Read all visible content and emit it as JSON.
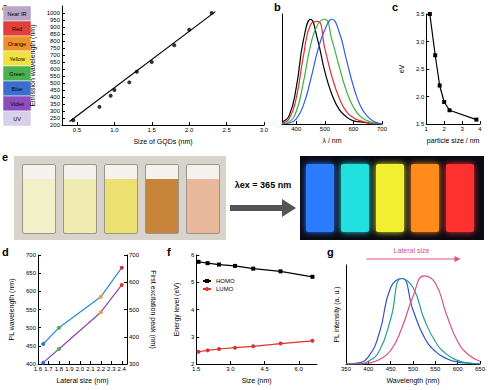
{
  "chart_data": [
    {
      "panel": "a",
      "type": "scatter",
      "x_label": "Size of GQDs (nm)",
      "y_label": "Emission wavelength (nm)",
      "xlim": [
        0.3,
        3.0
      ],
      "xticks": [
        0.5,
        {
          "value": 1,
          "label": "1.0"
        },
        1.5,
        {
          "value": 2,
          "label": "2.0"
        },
        2.5,
        {
          "value": 3,
          "label": "3.0"
        }
      ],
      "ylim": [
        200,
        1050
      ],
      "yticks": [
        200,
        250,
        300,
        350,
        400,
        450,
        500,
        550,
        600,
        650,
        700,
        750,
        800,
        850,
        900,
        950,
        1000
      ],
      "grid": false,
      "bands": [
        {
          "name": "Near IR",
          "color": "#b8a6c8"
        },
        {
          "name": "Red",
          "color": "#e0403a"
        },
        {
          "name": "Orange",
          "color": "#f0902a"
        },
        {
          "name": "Yellow",
          "color": "#f2e040"
        },
        {
          "name": "Green",
          "color": "#4cb050"
        },
        {
          "name": "Blue",
          "color": "#3a6fd0"
        },
        {
          "name": "Violet",
          "color": "#8a4ec0"
        },
        {
          "name": "UV",
          "color": "#d8d0e8"
        }
      ],
      "series": [
        {
          "type": "line",
          "color": "#000000",
          "marker": "none",
          "line_style": "solid",
          "x": [
            0.4,
            2.35
          ],
          "values": [
            225,
            1010
          ]
        },
        {
          "type": "scatter",
          "color": "#000000",
          "marker": "circle",
          "x": [
            0.45,
            0.8,
            0.95,
            1.0,
            1.2,
            1.3,
            1.5,
            1.8,
            2.0,
            2.3
          ],
          "values": [
            235,
            330,
            410,
            450,
            505,
            580,
            650,
            770,
            880,
            1000
          ]
        }
      ]
    },
    {
      "panel": "b",
      "type": "line",
      "x_label": "λ / nm",
      "x": [
        350,
        375,
        400,
        425,
        450,
        475,
        500,
        525,
        550,
        575,
        600,
        625,
        650,
        675,
        700
      ],
      "xlim": [
        350,
        700
      ],
      "xticks": [
        400,
        500,
        600,
        700
      ],
      "ylim": [
        0,
        1.05
      ],
      "yticks": [],
      "tick_labels": "x",
      "grid": false,
      "series": [
        {
          "color": "#000000",
          "marker": "none",
          "values": [
            0.02,
            0.08,
            0.35,
            0.8,
            1.0,
            0.8,
            0.5,
            0.28,
            0.14,
            0.07,
            0.03,
            0.02,
            0.01,
            0.0,
            0.0
          ]
        },
        {
          "color": "#e03030",
          "marker": "none",
          "values": [
            0.01,
            0.05,
            0.25,
            0.65,
            0.95,
            0.98,
            0.72,
            0.45,
            0.25,
            0.12,
            0.06,
            0.03,
            0.01,
            0.0,
            0.0
          ]
        },
        {
          "color": "#40b040",
          "marker": "none",
          "values": [
            0.0,
            0.02,
            0.12,
            0.4,
            0.75,
            0.95,
            1.0,
            0.8,
            0.55,
            0.32,
            0.16,
            0.07,
            0.03,
            0.01,
            0.0
          ]
        },
        {
          "color": "#3060e0",
          "marker": "none",
          "values": [
            0.0,
            0.01,
            0.05,
            0.18,
            0.42,
            0.7,
            0.9,
            1.0,
            0.88,
            0.62,
            0.36,
            0.17,
            0.07,
            0.02,
            0.0
          ]
        }
      ]
    },
    {
      "panel": "c",
      "type": "line",
      "x_label": "particle size / nm",
      "y_label": "eV",
      "x": [
        1.2,
        1.5,
        1.75,
        2.0,
        2.3,
        3.8
      ],
      "xlim": [
        1,
        4
      ],
      "xticks": [
        1,
        2,
        3,
        4
      ],
      "ylim": [
        1.5,
        3.5
      ],
      "yticks": [
        1.5,
        {
          "value": 2,
          "label": "2.0"
        },
        2.5,
        {
          "value": 3,
          "label": "3.0"
        },
        3.5
      ],
      "grid": false,
      "series": [
        {
          "color": "#000000",
          "marker": "square",
          "values": [
            3.5,
            2.75,
            2.2,
            1.9,
            1.75,
            1.58
          ]
        }
      ]
    },
    {
      "panel": "d",
      "type": "line",
      "x_label": "Lateral size (nm)",
      "y_label": "PL wavelength (nm)",
      "y2_label": "First excitation peak (nm)",
      "x": [
        1.65,
        1.8,
        2.2,
        2.4
      ],
      "xlim": [
        1.6,
        2.45
      ],
      "xticks": [
        1.6,
        1.7,
        1.8,
        1.9,
        {
          "value": 2,
          "label": "2.0"
        },
        2.1,
        2.2,
        2.3,
        2.4
      ],
      "ylim": [
        400,
        700
      ],
      "yticks": [
        400,
        450,
        500,
        550,
        600,
        650,
        700
      ],
      "y2lim": [
        300,
        700
      ],
      "y2ticks": [
        300,
        400,
        500,
        600,
        700
      ],
      "grid": false,
      "series": [
        {
          "color": "#2e86de",
          "marker": "circle",
          "colors": [
            "#2e75d0",
            "#4caf50",
            "#f0a020",
            "#e03030"
          ],
          "values": [
            455,
            500,
            585,
            665
          ]
        },
        {
          "color": "#8e44ad",
          "marker": "circle",
          "axis": "y2",
          "colors": [
            "#2e75d0",
            "#4caf50",
            "#f0a020",
            "#e03030"
          ],
          "values": [
            305,
            355,
            490,
            590
          ]
        }
      ]
    },
    {
      "panel": "f",
      "type": "line",
      "x_label": "Size (nm)",
      "y_label": "Energy level (eV)",
      "x": [
        1.6,
        2.0,
        2.5,
        3.2,
        4.0,
        5.2,
        6.6
      ],
      "xlim": [
        1.5,
        6.8
      ],
      "xticks": [
        1.5,
        {
          "value": 3,
          "label": "3.0"
        },
        4.5,
        {
          "value": 6,
          "label": "6.0"
        }
      ],
      "ylim": [
        2,
        6
      ],
      "yticks": [
        2,
        3,
        4,
        5,
        6
      ],
      "grid": false,
      "legend": "upper left",
      "series": [
        {
          "name": "HOMO",
          "color": "#000000",
          "marker": "square",
          "values": [
            5.75,
            5.7,
            5.65,
            5.6,
            5.5,
            5.4,
            5.2
          ]
        },
        {
          "name": "LUMO",
          "color": "#e03030",
          "marker": "circle",
          "values": [
            2.45,
            2.5,
            2.55,
            2.6,
            2.65,
            2.75,
            2.85
          ]
        }
      ]
    },
    {
      "panel": "g",
      "type": "line",
      "x_label": "Wavelength (nm)",
      "y_label": "PL intensity (a. u.)",
      "annotation": "Lateral size",
      "x": [
        350,
        375,
        400,
        425,
        450,
        475,
        500,
        525,
        550,
        575,
        600,
        625,
        650
      ],
      "xlim": [
        350,
        650
      ],
      "xticks": [
        350,
        400,
        450,
        500,
        550,
        600,
        650
      ],
      "ylim": [
        0,
        1.1
      ],
      "yticks": [],
      "tick_labels": "x",
      "grid": false,
      "series": [
        {
          "color": "#3050d0",
          "marker": "none",
          "values": [
            0.0,
            0.01,
            0.08,
            0.35,
            0.85,
            0.95,
            0.6,
            0.3,
            0.14,
            0.06,
            0.02,
            0.01,
            0.0
          ]
        },
        {
          "color": "#20a090",
          "marker": "none",
          "values": [
            0.0,
            0.0,
            0.03,
            0.15,
            0.5,
            0.95,
            0.85,
            0.5,
            0.25,
            0.11,
            0.04,
            0.01,
            0.0
          ]
        },
        {
          "color": "#e05080",
          "marker": "none",
          "values": [
            0.0,
            0.0,
            0.01,
            0.05,
            0.15,
            0.4,
            0.75,
            0.98,
            0.9,
            0.55,
            0.25,
            0.1,
            0.03
          ]
        }
      ]
    }
  ],
  "photo_panel": {
    "panel": "e",
    "annotation": "λex = 365 nm"
  }
}
